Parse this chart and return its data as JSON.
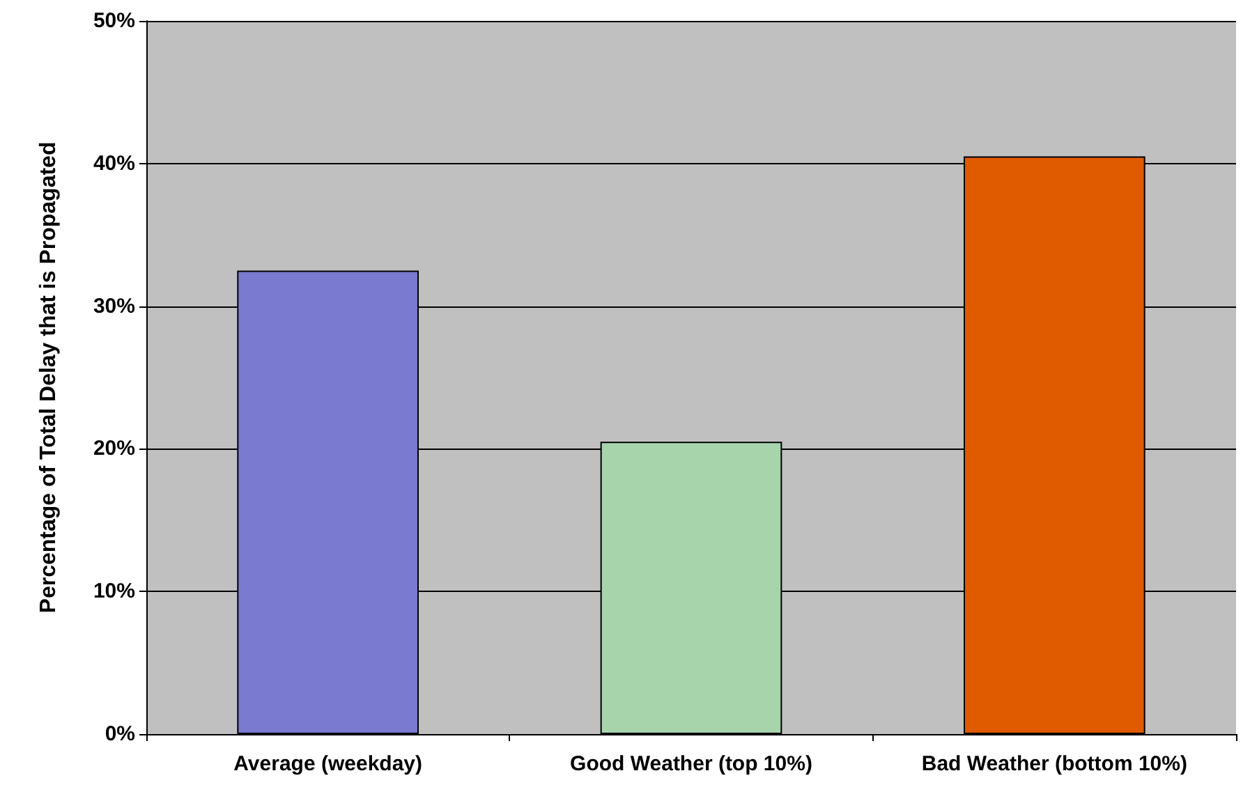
{
  "chart_data": {
    "type": "bar",
    "ylabel": "Percentage of Total Delay that is Propagated",
    "categories": [
      "Average (weekday)",
      "Good Weather (top 10%)",
      "Bad Weather (bottom 10%)"
    ],
    "values": [
      32.5,
      20.5,
      40.5
    ],
    "colors": [
      "#7a7ad0",
      "#a8d4ac",
      "#e05a00"
    ],
    "ylim": [
      0,
      50
    ],
    "yticks": [
      {
        "value": 0,
        "label": "0%"
      },
      {
        "value": 10,
        "label": "10%"
      },
      {
        "value": 20,
        "label": "20%"
      },
      {
        "value": 30,
        "label": "30%"
      },
      {
        "value": 40,
        "label": "40%"
      },
      {
        "value": 50,
        "label": "50%"
      }
    ],
    "grid": "y"
  }
}
